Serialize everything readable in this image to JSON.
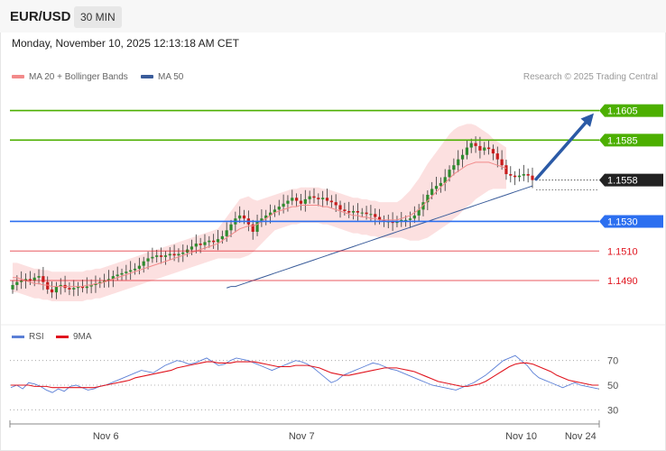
{
  "header": {
    "symbol": "EUR/USD",
    "timeframe": "30 MIN",
    "datetime": "Monday, November 10, 2025 12:13:18 AM CET",
    "credit": "Research © 2025 Trading Central"
  },
  "legend": {
    "ma20": "MA 20 + Bollinger Bands",
    "ma50": "MA 50",
    "ma20_color": "#f28a8a",
    "ma50_color": "#3a5c9a"
  },
  "rsi_legend": {
    "rsi": "RSI",
    "ma9": "9MA",
    "rsi_color": "#5b7fd6",
    "ma9_color": "#e0141e"
  },
  "chart_data": [
    {
      "type": "candlestick",
      "ylim": [
        1.1465,
        1.162
      ],
      "levels": [
        {
          "label": "1.1605",
          "value": 1.1605,
          "kind": "target",
          "color": "#4caf00"
        },
        {
          "label": "1.1585",
          "value": 1.1585,
          "kind": "target",
          "color": "#4caf00"
        },
        {
          "label": "1.1558",
          "value": 1.1558,
          "kind": "last-price",
          "color": "#222222"
        },
        {
          "label": "1.1530",
          "value": 1.153,
          "kind": "pivot",
          "color": "#2c6ff0"
        },
        {
          "label": "1.1510",
          "value": 1.151,
          "kind": "support",
          "color": "#e0141e"
        },
        {
          "label": "1.1490",
          "value": 1.149,
          "kind": "support",
          "color": "#e0141e"
        }
      ],
      "close": [
        1.1487,
        1.1489,
        1.149,
        1.1491,
        1.149,
        1.1492,
        1.1493,
        1.1489,
        1.1484,
        1.1482,
        1.1486,
        1.1487,
        1.1485,
        1.1484,
        1.1485,
        1.1486,
        1.1485,
        1.1486,
        1.1487,
        1.1488,
        1.1489,
        1.149,
        1.1491,
        1.1493,
        1.1494,
        1.1495,
        1.1496,
        1.1497,
        1.1498,
        1.15,
        1.1503,
        1.1505,
        1.1506,
        1.1507,
        1.1506,
        1.1507,
        1.1508,
        1.1507,
        1.1508,
        1.1509,
        1.1511,
        1.1513,
        1.1515,
        1.1514,
        1.1516,
        1.1517,
        1.1516,
        1.1518,
        1.152,
        1.1524,
        1.1528,
        1.1532,
        1.1534,
        1.1532,
        1.1528,
        1.1523,
        1.153,
        1.1532,
        1.1534,
        1.1536,
        1.1538,
        1.154,
        1.1542,
        1.1544,
        1.1546,
        1.1544,
        1.1542,
        1.1545,
        1.1547,
        1.1546,
        1.1545,
        1.1546,
        1.1544,
        1.1543,
        1.1541,
        1.1538,
        1.1537,
        1.1536,
        1.1537,
        1.1536,
        1.1536,
        1.1535,
        1.1535,
        1.1533,
        1.1531,
        1.153,
        1.153,
        1.1529,
        1.153,
        1.1531,
        1.1531,
        1.1532,
        1.1534,
        1.1538,
        1.1543,
        1.1548,
        1.1552,
        1.1554,
        1.1556,
        1.156,
        1.1565,
        1.1568,
        1.1572,
        1.1575,
        1.158,
        1.1583,
        1.1581,
        1.1578,
        1.158,
        1.1579,
        1.1576,
        1.1572,
        1.1568,
        1.1562,
        1.1561,
        1.156,
        1.1561,
        1.1562,
        1.1561,
        1.1558
      ],
      "ma20": [
        1.1492,
        1.1492,
        1.1491,
        1.149,
        1.1489,
        1.1488,
        1.1488,
        1.1487,
        1.1487,
        1.1486,
        1.1486,
        1.1486,
        1.1486,
        1.1486,
        1.1486,
        1.1486,
        1.1486,
        1.1487,
        1.1487,
        1.1488,
        1.1488,
        1.1489,
        1.149,
        1.1491,
        1.1492,
        1.1493,
        1.1494,
        1.1495,
        1.1496,
        1.1497,
        1.1498,
        1.1499,
        1.15,
        1.1501,
        1.1502,
        1.1503,
        1.1504,
        1.1505,
        1.1506,
        1.1507,
        1.1508,
        1.1509,
        1.151,
        1.1511,
        1.1512,
        1.1513,
        1.1514,
        1.1515,
        1.1517,
        1.1519,
        1.1521,
        1.1523,
        1.1525,
        1.1526,
        1.1527,
        1.1527,
        1.1528,
        1.153,
        1.1532,
        1.1534,
        1.1536,
        1.1537,
        1.1538,
        1.1539,
        1.154,
        1.154,
        1.1541,
        1.1541,
        1.1541,
        1.1541,
        1.1541,
        1.154,
        1.154,
        1.1539,
        1.1538,
        1.1537,
        1.1536,
        1.1535,
        1.1534,
        1.1534,
        1.1533,
        1.1533,
        1.1532,
        1.1532,
        1.1531,
        1.1531,
        1.1531,
        1.1531,
        1.1531,
        1.1532,
        1.1533,
        1.1534,
        1.1536,
        1.1538,
        1.1541,
        1.1544,
        1.1547,
        1.155,
        1.1553,
        1.1556,
        1.1559,
        1.1562,
        1.1564,
        1.1566,
        1.1568,
        1.1569,
        1.157,
        1.157,
        1.157,
        1.157,
        1.1569,
        1.1568,
        1.1567,
        1.1566
      ],
      "bb_width": [
        0.001,
        0.001,
        0.001,
        0.001,
        0.001,
        0.001,
        0.001,
        0.001,
        0.001,
        0.001,
        0.001,
        0.001,
        0.001,
        0.001,
        0.001,
        0.001,
        0.001,
        0.001,
        0.001,
        0.001,
        0.001,
        0.001,
        0.001,
        0.001,
        0.001,
        0.001,
        0.001,
        0.001,
        0.001,
        0.001,
        0.001,
        0.001,
        0.001,
        0.001,
        0.001,
        0.001,
        0.001,
        0.001,
        0.001,
        0.001,
        0.001,
        0.001,
        0.001,
        0.001,
        0.001,
        0.001,
        0.001,
        0.001,
        0.0012,
        0.0014,
        0.0016,
        0.0018,
        0.002,
        0.002,
        0.002,
        0.0018,
        0.0016,
        0.0015,
        0.0014,
        0.0013,
        0.0012,
        0.0012,
        0.0012,
        0.0012,
        0.0012,
        0.0012,
        0.0012,
        0.0012,
        0.0012,
        0.0012,
        0.0012,
        0.0012,
        0.0012,
        0.0012,
        0.0012,
        0.0012,
        0.0012,
        0.0012,
        0.0012,
        0.0012,
        0.0012,
        0.0012,
        0.0012,
        0.0012,
        0.0012,
        0.0012,
        0.0012,
        0.0012,
        0.0012,
        0.0013,
        0.0015,
        0.0017,
        0.0019,
        0.0021,
        0.0023,
        0.0025,
        0.0026,
        0.0027,
        0.0028,
        0.0029,
        0.003,
        0.003,
        0.003,
        0.0029,
        0.0028,
        0.0027,
        0.0025,
        0.0023,
        0.0021,
        0.0019,
        0.0017,
        0.0016,
        0.0015,
        0.0014
      ],
      "ma50": [
        1.1485,
        1.1486,
        1.1486,
        1.1487,
        1.1488,
        1.1489,
        1.149,
        1.1491,
        1.1492,
        1.1493,
        1.1494,
        1.1495,
        1.1496,
        1.1497,
        1.1498,
        1.1499,
        1.15,
        1.1501,
        1.1502,
        1.1503,
        1.1504,
        1.1505,
        1.1506,
        1.1507,
        1.1508,
        1.1509,
        1.151,
        1.1511,
        1.1512,
        1.1513,
        1.1514,
        1.1515,
        1.1516,
        1.1517,
        1.1518,
        1.1519,
        1.152,
        1.1521,
        1.1522,
        1.1523,
        1.1524,
        1.1525,
        1.1526,
        1.1527,
        1.1528,
        1.1529,
        1.153,
        1.1531,
        1.1532,
        1.1533,
        1.1534,
        1.1535,
        1.1536,
        1.1537,
        1.1538,
        1.1539,
        1.154,
        1.1541,
        1.1542,
        1.1543,
        1.1544,
        1.1545,
        1.1546,
        1.1547,
        1.1548,
        1.1549,
        1.155,
        1.1551,
        1.1552,
        1.1553,
        1.1554
      ],
      "projection_arrow": {
        "from": 1.1558,
        "to": 1.1605
      }
    },
    {
      "type": "line",
      "ylim": [
        20,
        80
      ],
      "y_ticks": [
        "70",
        "50",
        "30"
      ],
      "y_tick_values": [
        70,
        50,
        30
      ],
      "x_labels": [
        "Nov 6",
        "Nov 7",
        "Nov 10",
        "Nov 24"
      ],
      "x_label_index": [
        16,
        49,
        86,
        96
      ],
      "x_count": 100,
      "series": [
        {
          "name": "RSI",
          "values": [
            48,
            50,
            47,
            52,
            51,
            49,
            46,
            44,
            47,
            45,
            49,
            50,
            48,
            46,
            47,
            49,
            50,
            52,
            54,
            56,
            58,
            60,
            62,
            61,
            60,
            63,
            66,
            68,
            70,
            69,
            67,
            68,
            70,
            72,
            69,
            66,
            67,
            70,
            72,
            71,
            70,
            68,
            66,
            64,
            62,
            64,
            66,
            68,
            70,
            69,
            67,
            64,
            60,
            56,
            52,
            54,
            58,
            60,
            62,
            64,
            66,
            68,
            67,
            65,
            63,
            62,
            60,
            58,
            56,
            54,
            52,
            50,
            49,
            48,
            47,
            46,
            48,
            50,
            52,
            55,
            58,
            62,
            66,
            70,
            72,
            74,
            70,
            66,
            60,
            56,
            54,
            52,
            50,
            48,
            50,
            52,
            50,
            49,
            48,
            47
          ]
        },
        {
          "name": "9MA",
          "values": [
            50,
            50,
            50,
            50,
            49,
            49,
            49,
            48,
            48,
            48,
            48,
            48,
            48,
            48,
            48,
            49,
            50,
            51,
            52,
            53,
            54,
            56,
            57,
            58,
            59,
            60,
            61,
            62,
            64,
            65,
            66,
            67,
            68,
            69,
            69,
            68,
            68,
            68,
            69,
            69,
            69,
            69,
            68,
            67,
            66,
            65,
            65,
            65,
            66,
            66,
            66,
            65,
            64,
            62,
            60,
            59,
            58,
            58,
            59,
            60,
            61,
            62,
            63,
            64,
            64,
            64,
            63,
            62,
            61,
            59,
            57,
            55,
            53,
            52,
            51,
            50,
            49,
            49,
            50,
            51,
            53,
            56,
            59,
            62,
            65,
            67,
            68,
            68,
            67,
            65,
            63,
            61,
            58,
            56,
            54,
            53,
            52,
            51,
            50,
            50
          ]
        }
      ]
    }
  ]
}
